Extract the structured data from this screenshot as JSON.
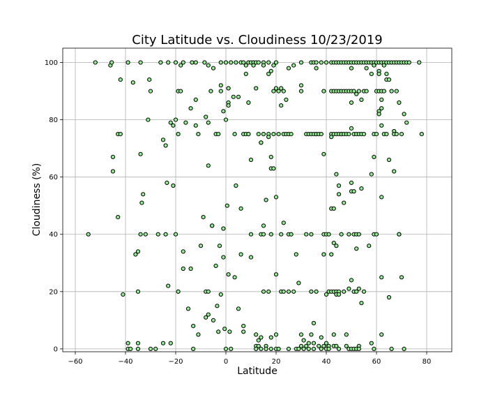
{
  "chart_data": {
    "type": "scatter",
    "title": "City Latitude vs. Cloudiness 10/23/2019",
    "xlabel": "Latitude",
    "ylabel": "Cloudiness (%)",
    "xlim": [
      -65,
      90
    ],
    "ylim": [
      -1,
      105
    ],
    "xticks": [
      -60,
      -40,
      -20,
      0,
      20,
      40,
      60,
      80
    ],
    "yticks": [
      0,
      20,
      40,
      60,
      80,
      100
    ],
    "grid": true,
    "marker_fill": "#90ee90",
    "marker_edge": "#000000",
    "points": [
      [
        -54.8,
        40
      ],
      [
        -52,
        100
      ],
      [
        -46,
        99
      ],
      [
        -45.5,
        100
      ],
      [
        -45,
        67
      ],
      [
        -45,
        62
      ],
      [
        -43,
        75
      ],
      [
        -43,
        46
      ],
      [
        -42,
        75
      ],
      [
        -42,
        94
      ],
      [
        -41,
        19
      ],
      [
        -39,
        100
      ],
      [
        -39,
        2
      ],
      [
        -39,
        0
      ],
      [
        -38,
        0
      ],
      [
        -37,
        93
      ],
      [
        -36,
        33
      ],
      [
        -35,
        34
      ],
      [
        -35,
        20
      ],
      [
        -35,
        2
      ],
      [
        -35,
        0
      ],
      [
        -34,
        100
      ],
      [
        -34,
        68
      ],
      [
        -34,
        40
      ],
      [
        -33.5,
        51
      ],
      [
        -33,
        54
      ],
      [
        -32,
        40
      ],
      [
        -31,
        80
      ],
      [
        -30.5,
        94
      ],
      [
        -30,
        90
      ],
      [
        -30,
        0
      ],
      [
        -28,
        0
      ],
      [
        -27,
        40
      ],
      [
        -26,
        100
      ],
      [
        -25,
        73
      ],
      [
        -25,
        2
      ],
      [
        -24,
        71
      ],
      [
        -24,
        40
      ],
      [
        -23.5,
        58
      ],
      [
        -23,
        22
      ],
      [
        -23,
        100
      ],
      [
        -22,
        79
      ],
      [
        -22,
        2
      ],
      [
        -21,
        78
      ],
      [
        -21,
        57
      ],
      [
        -20,
        100
      ],
      [
        -20,
        80
      ],
      [
        -20,
        40
      ],
      [
        -19,
        20
      ],
      [
        -19,
        90
      ],
      [
        -19,
        75
      ],
      [
        -18,
        99
      ],
      [
        -18,
        90
      ],
      [
        -17,
        100
      ],
      [
        -17,
        34
      ],
      [
        -17,
        28
      ],
      [
        -16,
        79
      ],
      [
        -15,
        14
      ],
      [
        -14,
        84
      ],
      [
        -14,
        28
      ],
      [
        -13.5,
        100
      ],
      [
        -13,
        8
      ],
      [
        -13,
        0
      ],
      [
        -12,
        100
      ],
      [
        -12,
        87
      ],
      [
        -12,
        78
      ],
      [
        -11,
        75
      ],
      [
        -11,
        5
      ],
      [
        -10,
        36
      ],
      [
        -9,
        46
      ],
      [
        -8.5,
        100
      ],
      [
        -8,
        81
      ],
      [
        -8,
        20
      ],
      [
        -8,
        11
      ],
      [
        -7,
        99
      ],
      [
        -7,
        79
      ],
      [
        -7,
        64
      ],
      [
        -7,
        20
      ],
      [
        -7,
        12
      ],
      [
        -6,
        90
      ],
      [
        -5.5,
        43
      ],
      [
        -5.5,
        43
      ],
      [
        -5,
        98
      ],
      [
        -5,
        10
      ],
      [
        -4,
        75
      ],
      [
        -4,
        29
      ],
      [
        -3.5,
        15
      ],
      [
        -3,
        75
      ],
      [
        -3,
        6
      ],
      [
        -2.5,
        36
      ],
      [
        -2,
        92
      ],
      [
        -2,
        90
      ],
      [
        -2,
        100
      ],
      [
        -2,
        19
      ],
      [
        -1,
        83
      ],
      [
        -1,
        42
      ],
      [
        -1,
        32
      ],
      [
        -0.5,
        7
      ],
      [
        0,
        80
      ],
      [
        0,
        0
      ],
      [
        0,
        100
      ],
      [
        0.5,
        50
      ],
      [
        1,
        86
      ],
      [
        1,
        85
      ],
      [
        1,
        91
      ],
      [
        1,
        26
      ],
      [
        1.5,
        6
      ],
      [
        2,
        100
      ],
      [
        2,
        0
      ],
      [
        3,
        88
      ],
      [
        3.5,
        75
      ],
      [
        3.5,
        25
      ],
      [
        4,
        57
      ],
      [
        4,
        100
      ],
      [
        5,
        88
      ],
      [
        5,
        14
      ],
      [
        6,
        49
      ],
      [
        6,
        100
      ],
      [
        6,
        33
      ],
      [
        7,
        100
      ],
      [
        7,
        75
      ],
      [
        7,
        8
      ],
      [
        7,
        6
      ],
      [
        8,
        96
      ],
      [
        8,
        75
      ],
      [
        8,
        99
      ],
      [
        9,
        100
      ],
      [
        9,
        86
      ],
      [
        9,
        75
      ],
      [
        9,
        75
      ],
      [
        10,
        100
      ],
      [
        10,
        40
      ],
      [
        10,
        32
      ],
      [
        10,
        66
      ],
      [
        11,
        100
      ],
      [
        11,
        99
      ],
      [
        12,
        100
      ],
      [
        12,
        91
      ],
      [
        12,
        5
      ],
      [
        12,
        1
      ],
      [
        12,
        0
      ],
      [
        13,
        100
      ],
      [
        13,
        75
      ],
      [
        13,
        3
      ],
      [
        13,
        1
      ],
      [
        14,
        40
      ],
      [
        14,
        72
      ],
      [
        14,
        72
      ],
      [
        14,
        4
      ],
      [
        14,
        0
      ],
      [
        15,
        100
      ],
      [
        15,
        99
      ],
      [
        15,
        75
      ],
      [
        15,
        43
      ],
      [
        15,
        40
      ],
      [
        15,
        20
      ],
      [
        16,
        52
      ],
      [
        16,
        1
      ],
      [
        16,
        0
      ],
      [
        17,
        75
      ],
      [
        17,
        74
      ],
      [
        17,
        96
      ],
      [
        17,
        100
      ],
      [
        17,
        20
      ],
      [
        18,
        97
      ],
      [
        18,
        67
      ],
      [
        18,
        63
      ],
      [
        18,
        40
      ],
      [
        18,
        4
      ],
      [
        18,
        0
      ],
      [
        19,
        90
      ],
      [
        19,
        99
      ],
      [
        19,
        75
      ],
      [
        19,
        63
      ],
      [
        20,
        100
      ],
      [
        20,
        91
      ],
      [
        20,
        53
      ],
      [
        20,
        26
      ],
      [
        20,
        5
      ],
      [
        20,
        0
      ],
      [
        21,
        90
      ],
      [
        21,
        75
      ],
      [
        21,
        0
      ],
      [
        22,
        85
      ],
      [
        22,
        91
      ],
      [
        22,
        40
      ],
      [
        22,
        20
      ],
      [
        23,
        90
      ],
      [
        23,
        75
      ],
      [
        23,
        44
      ],
      [
        23,
        20
      ],
      [
        24,
        87
      ],
      [
        24,
        75
      ],
      [
        25,
        98
      ],
      [
        25,
        75
      ],
      [
        25,
        40
      ],
      [
        25,
        20
      ],
      [
        25,
        0
      ],
      [
        26,
        75
      ],
      [
        26,
        40
      ],
      [
        27,
        99
      ],
      [
        27,
        20
      ],
      [
        28,
        0
      ],
      [
        28,
        33
      ],
      [
        29,
        0
      ],
      [
        29,
        23
      ],
      [
        30,
        100
      ],
      [
        30,
        92
      ],
      [
        30,
        90
      ],
      [
        30,
        5
      ],
      [
        30,
        1
      ],
      [
        31,
        0
      ],
      [
        31,
        3
      ],
      [
        32,
        75
      ],
      [
        32,
        40
      ],
      [
        32,
        1
      ],
      [
        33,
        2
      ],
      [
        33,
        0
      ],
      [
        33,
        75
      ],
      [
        34,
        100
      ],
      [
        34,
        75
      ],
      [
        34,
        40
      ],
      [
        34,
        20
      ],
      [
        34,
        5
      ],
      [
        35,
        100
      ],
      [
        35,
        75
      ],
      [
        35,
        9
      ],
      [
        35,
        2
      ],
      [
        35,
        0
      ],
      [
        36,
        100
      ],
      [
        36,
        98
      ],
      [
        36,
        75
      ],
      [
        36,
        75
      ],
      [
        36,
        20
      ],
      [
        37,
        75
      ],
      [
        37,
        1
      ],
      [
        38,
        0
      ],
      [
        38,
        4
      ],
      [
        38,
        100
      ],
      [
        38,
        75
      ],
      [
        39,
        68
      ],
      [
        39,
        90
      ],
      [
        39,
        40
      ],
      [
        39,
        33
      ],
      [
        39,
        1
      ],
      [
        40,
        100
      ],
      [
        40,
        40
      ],
      [
        40,
        2
      ],
      [
        40,
        19
      ],
      [
        40,
        0
      ],
      [
        41,
        40
      ],
      [
        41,
        20
      ],
      [
        41,
        1
      ],
      [
        41,
        0
      ],
      [
        42,
        100
      ],
      [
        42,
        90
      ],
      [
        42,
        75
      ],
      [
        42,
        74
      ],
      [
        42,
        49
      ],
      [
        42,
        33
      ],
      [
        42,
        20
      ],
      [
        43,
        100
      ],
      [
        43,
        90
      ],
      [
        43,
        75
      ],
      [
        43,
        49
      ],
      [
        43,
        37
      ],
      [
        43,
        20
      ],
      [
        43,
        5
      ],
      [
        43,
        1
      ],
      [
        44,
        100
      ],
      [
        44,
        90
      ],
      [
        44,
        75
      ],
      [
        44,
        61
      ],
      [
        44,
        36
      ],
      [
        44,
        20
      ],
      [
        44,
        19
      ],
      [
        44,
        1
      ],
      [
        45,
        100
      ],
      [
        45,
        90
      ],
      [
        45,
        75
      ],
      [
        45,
        57
      ],
      [
        45,
        54
      ],
      [
        45,
        20
      ],
      [
        45,
        19
      ],
      [
        45,
        0
      ],
      [
        46,
        100
      ],
      [
        46,
        90
      ],
      [
        46,
        75
      ],
      [
        46,
        75
      ],
      [
        46,
        40
      ],
      [
        47,
        100
      ],
      [
        47,
        90
      ],
      [
        47,
        75
      ],
      [
        47,
        51
      ],
      [
        47,
        20
      ],
      [
        48,
        100
      ],
      [
        48,
        90
      ],
      [
        48,
        75
      ],
      [
        48,
        5
      ],
      [
        48,
        1
      ],
      [
        49,
        100
      ],
      [
        49,
        90
      ],
      [
        49,
        75
      ],
      [
        49,
        40
      ],
      [
        49,
        21
      ],
      [
        49,
        0
      ],
      [
        50,
        100
      ],
      [
        50,
        98
      ],
      [
        50,
        90
      ],
      [
        50,
        86
      ],
      [
        50,
        77
      ],
      [
        50,
        58
      ],
      [
        50,
        55
      ],
      [
        50,
        24
      ],
      [
        50,
        0
      ],
      [
        51,
        100
      ],
      [
        51,
        90
      ],
      [
        51,
        75
      ],
      [
        51,
        55
      ],
      [
        51,
        40
      ],
      [
        51,
        20
      ],
      [
        51,
        0
      ],
      [
        52,
        100
      ],
      [
        52,
        89
      ],
      [
        52,
        75
      ],
      [
        52,
        40
      ],
      [
        52,
        35
      ],
      [
        52,
        20
      ],
      [
        52,
        0
      ],
      [
        53,
        100
      ],
      [
        53,
        90
      ],
      [
        53,
        75
      ],
      [
        53,
        40
      ],
      [
        53,
        21
      ],
      [
        53,
        1
      ],
      [
        53,
        0
      ],
      [
        54,
        100
      ],
      [
        54,
        87
      ],
      [
        54,
        75
      ],
      [
        54,
        56
      ],
      [
        54,
        16
      ],
      [
        55,
        100
      ],
      [
        55,
        90
      ],
      [
        55,
        75
      ],
      [
        55,
        20
      ],
      [
        56,
        100
      ],
      [
        56,
        98
      ],
      [
        56,
        90
      ],
      [
        57,
        100
      ],
      [
        57,
        36
      ],
      [
        58,
        100
      ],
      [
        58,
        96
      ],
      [
        58,
        61
      ],
      [
        58,
        2
      ],
      [
        59,
        100
      ],
      [
        59,
        99
      ],
      [
        59,
        75
      ],
      [
        59,
        67
      ],
      [
        59,
        40
      ],
      [
        59,
        0
      ],
      [
        60,
        100
      ],
      [
        60,
        90
      ],
      [
        60,
        75
      ],
      [
        60,
        40
      ],
      [
        61,
        100
      ],
      [
        61,
        97
      ],
      [
        61,
        96
      ],
      [
        61,
        90
      ],
      [
        61,
        83
      ],
      [
        61,
        82
      ],
      [
        62,
        100
      ],
      [
        62,
        90
      ],
      [
        62,
        87
      ],
      [
        62,
        84
      ],
      [
        62,
        78
      ],
      [
        62,
        53
      ],
      [
        62,
        25
      ],
      [
        62,
        5
      ],
      [
        63,
        100
      ],
      [
        63,
        99
      ],
      [
        63,
        90
      ],
      [
        63,
        75
      ],
      [
        64,
        100
      ],
      [
        64,
        96
      ],
      [
        64,
        94
      ],
      [
        64,
        75
      ],
      [
        65,
        100
      ],
      [
        65,
        94
      ],
      [
        65,
        66
      ],
      [
        65,
        18
      ],
      [
        66,
        100
      ],
      [
        66,
        90
      ],
      [
        66,
        0
      ],
      [
        67,
        100
      ],
      [
        67,
        76
      ],
      [
        67,
        75
      ],
      [
        67,
        62
      ],
      [
        68,
        100
      ],
      [
        68,
        90
      ],
      [
        68,
        75
      ],
      [
        69,
        100
      ],
      [
        69,
        40
      ],
      [
        69,
        86
      ],
      [
        69,
        40
      ],
      [
        70,
        100
      ],
      [
        70,
        75
      ],
      [
        70,
        25
      ],
      [
        71,
        100
      ],
      [
        71,
        82
      ],
      [
        71,
        0
      ],
      [
        72,
        100
      ],
      [
        72,
        79
      ],
      [
        73,
        100
      ],
      [
        77,
        100
      ],
      [
        78,
        75
      ]
    ]
  }
}
